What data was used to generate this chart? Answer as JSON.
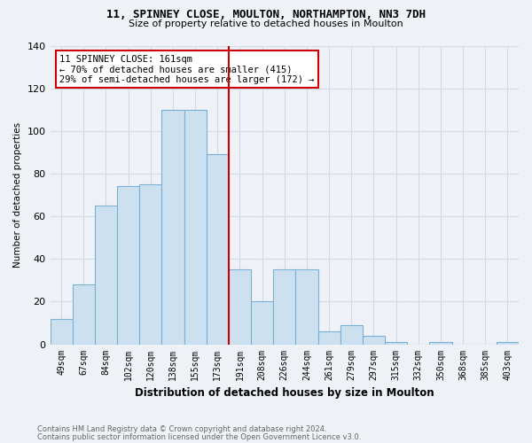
{
  "title1": "11, SPINNEY CLOSE, MOULTON, NORTHAMPTON, NN3 7DH",
  "title2": "Size of property relative to detached houses in Moulton",
  "xlabel": "Distribution of detached houses by size in Moulton",
  "ylabel": "Number of detached properties",
  "categories": [
    "49sqm",
    "67sqm",
    "84sqm",
    "102sqm",
    "120sqm",
    "138sqm",
    "155sqm",
    "173sqm",
    "191sqm",
    "208sqm",
    "226sqm",
    "244sqm",
    "261sqm",
    "279sqm",
    "297sqm",
    "315sqm",
    "332sqm",
    "350sqm",
    "368sqm",
    "385sqm",
    "403sqm"
  ],
  "values": [
    12,
    28,
    65,
    74,
    75,
    110,
    110,
    89,
    35,
    20,
    35,
    35,
    6,
    9,
    4,
    1,
    0,
    1,
    0,
    0,
    1
  ],
  "bar_color": "#cce0f0",
  "bar_edge_color": "#7ab0d4",
  "property_line_index": 7,
  "annotation_text": "11 SPINNEY CLOSE: 161sqm\n← 70% of detached houses are smaller (415)\n29% of semi-detached houses are larger (172) →",
  "footnote1": "Contains HM Land Registry data © Crown copyright and database right 2024.",
  "footnote2": "Contains public sector information licensed under the Open Government Licence v3.0.",
  "ylim": [
    0,
    140
  ],
  "background_color": "#eef2f7",
  "grid_color": "#d0dae8",
  "annotation_box_color": "#ffffff",
  "annotation_box_edge": "#cc0000",
  "line_color": "#cc0000"
}
